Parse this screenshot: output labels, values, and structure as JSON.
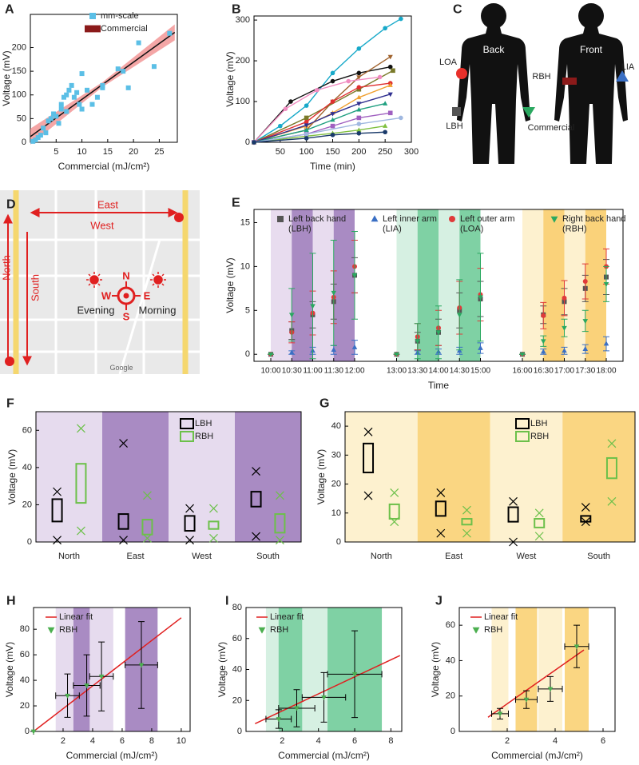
{
  "chart_data": [
    {
      "panel": "A",
      "type": "scatter",
      "xlabel": "Commercial  (mJ/cm²)",
      "ylabel": "Voltage (mV)",
      "xlim": [
        0,
        28.5
      ],
      "xticks": [
        5,
        10,
        15,
        20,
        25
      ],
      "ylim": [
        0,
        270
      ],
      "yticks": [
        0,
        50,
        100,
        150,
        200
      ],
      "series": [
        {
          "name": "mm-scale",
          "color": "#5bbfe6",
          "marker": "square",
          "x": [
            0.5,
            1,
            1.5,
            2,
            2.5,
            3,
            3.5,
            4,
            4.5,
            5,
            5.5,
            6,
            6,
            6.5,
            7,
            7,
            7.5,
            8,
            8.5,
            9,
            9.5,
            10,
            10,
            11,
            12,
            13,
            14,
            14,
            17,
            18,
            19,
            21,
            24,
            27
          ],
          "values": [
            2,
            5,
            10,
            15,
            30,
            20,
            45,
            50,
            60,
            55,
            40,
            70,
            80,
            95,
            65,
            100,
            110,
            120,
            95,
            105,
            80,
            70,
            145,
            110,
            80,
            95,
            120,
            115,
            155,
            150,
            115,
            210,
            160,
            230
          ]
        },
        {
          "name": "Commercial",
          "color": "#8b1a1a",
          "marker": "bar",
          "x": [],
          "values": []
        }
      ],
      "fit": {
        "color": "#111111",
        "band_color": "#f08080",
        "x": [
          0,
          28
        ],
        "y": [
          12,
          232
        ]
      }
    },
    {
      "panel": "B",
      "type": "line",
      "xlabel": "Time (min)",
      "ylabel": "Voltage  (mV)",
      "xlim": [
        0,
        300
      ],
      "xticks": [
        50,
        100,
        150,
        200,
        250,
        300
      ],
      "ylim": [
        0,
        310
      ],
      "yticks": [
        0,
        100,
        200,
        300
      ],
      "series": [
        {
          "color": "#17a9c9",
          "marker": "circle",
          "x": [
            0,
            50,
            100,
            150,
            200,
            250,
            280
          ],
          "values": [
            0,
            40,
            90,
            170,
            230,
            280,
            303
          ]
        },
        {
          "color": "#111111",
          "marker": "circle",
          "x": [
            0,
            70,
            150,
            200,
            260
          ],
          "values": [
            0,
            100,
            150,
            170,
            185
          ]
        },
        {
          "color": "#a0622d",
          "marker": "triangle-down",
          "x": [
            0,
            100,
            150,
            200,
            260
          ],
          "values": [
            0,
            30,
            100,
            160,
            210
          ]
        },
        {
          "color": "#7a7a2a",
          "marker": "square",
          "x": [
            0,
            100,
            200,
            265
          ],
          "values": [
            0,
            60,
            130,
            176
          ]
        },
        {
          "color": "#f08bc0",
          "marker": "circle",
          "x": [
            0,
            60,
            120,
            180,
            240
          ],
          "values": [
            0,
            82,
            128,
            150,
            160
          ]
        },
        {
          "color": "#e03030",
          "marker": "circle",
          "x": [
            0,
            100,
            150,
            200,
            260
          ],
          "values": [
            0,
            50,
            100,
            135,
            145
          ]
        },
        {
          "color": "#f0a030",
          "marker": "triangle",
          "x": [
            0,
            100,
            150,
            200,
            260
          ],
          "values": [
            0,
            40,
            72,
            110,
            140
          ]
        },
        {
          "color": "#303090",
          "marker": "triangle-down",
          "x": [
            0,
            100,
            150,
            200,
            260
          ],
          "values": [
            0,
            42,
            70,
            95,
            118
          ]
        },
        {
          "color": "#20a080",
          "marker": "triangle",
          "x": [
            0,
            100,
            150,
            200,
            250
          ],
          "values": [
            0,
            30,
            55,
            80,
            95
          ]
        },
        {
          "color": "#a060c0",
          "marker": "square",
          "x": [
            0,
            100,
            150,
            200,
            260
          ],
          "values": [
            0,
            20,
            40,
            60,
            72
          ]
        },
        {
          "color": "#80c040",
          "marker": "triangle",
          "x": [
            0,
            100,
            150,
            200,
            250
          ],
          "values": [
            0,
            15,
            22,
            30,
            40
          ]
        },
        {
          "color": "#a0b8e0",
          "marker": "circle",
          "x": [
            0,
            100,
            200,
            280
          ],
          "values": [
            0,
            20,
            45,
            60
          ]
        },
        {
          "color": "#1a3a6a",
          "marker": "circle",
          "x": [
            0,
            100,
            150,
            200,
            250
          ],
          "values": [
            0,
            10,
            18,
            22,
            25
          ]
        }
      ]
    },
    {
      "panel": "E",
      "type": "scatter",
      "xlabel": "Time",
      "ylabel": "Voltage (mV)",
      "xlim": [
        9.6,
        18.4
      ],
      "xticks": [
        {
          "value": 10,
          "label": "10:00"
        },
        {
          "value": 10.5,
          "label": "10:30"
        },
        {
          "value": 11,
          "label": "11:00"
        },
        {
          "value": 11.5,
          "label": "11:30"
        },
        {
          "value": 12,
          "label": "12:00"
        },
        {
          "value": 13,
          "label": "13:00"
        },
        {
          "value": 13.5,
          "label": "13:30"
        },
        {
          "value": 14,
          "label": "14:00"
        },
        {
          "value": 14.5,
          "label": "14:30"
        },
        {
          "value": 15,
          "label": "15:00"
        },
        {
          "value": 16,
          "label": "16:00"
        },
        {
          "value": 16.5,
          "label": "16:30"
        },
        {
          "value": 17,
          "label": "17:00"
        },
        {
          "value": 17.5,
          "label": "17:30"
        },
        {
          "value": 18,
          "label": "18:00"
        }
      ],
      "ylim": [
        -0.8,
        16.5
      ],
      "yticks": [
        0,
        5,
        10,
        15
      ],
      "bands": "ticks",
      "band_colors": [
        "#e8dcef",
        "#a98bc3",
        "#e8dcef",
        "#a98bc3",
        "#d6f0e2",
        "#7fd1a4",
        "#d6f0e2",
        "#7fd1a4",
        "#fdf1cf",
        "#fad27a",
        "#fdf1cf",
        "#fad27a"
      ],
      "x": [
        10,
        10.5,
        11,
        11.5,
        12,
        13,
        13.5,
        14,
        14.5,
        15,
        16,
        16.5,
        17,
        17.5,
        18
      ],
      "series": [
        {
          "name": "Left back hand\n(LBH)",
          "color": "#555555",
          "marker": "square",
          "values": [
            0,
            2.7,
            4.5,
            6,
            9,
            0,
            1.5,
            2.5,
            5,
            6.3,
            0,
            4.5,
            6,
            7.5,
            8.8
          ],
          "yerr": [
            0,
            1,
            1.5,
            2,
            2,
            0,
            1,
            1.5,
            2,
            2,
            0,
            1,
            1.5,
            1.5,
            2
          ]
        },
        {
          "name": "Left inner arm\n(LIA)",
          "color": "#3a6fc4",
          "marker": "triangle",
          "values": [
            0,
            0.2,
            0.4,
            0.5,
            0.8,
            0,
            0.2,
            0.3,
            0.4,
            0.7,
            0,
            0.3,
            0.4,
            0.6,
            1.2
          ],
          "yerr": [
            0,
            0.2,
            0.4,
            0.5,
            0.8,
            0,
            0.2,
            0.3,
            0.4,
            0.6,
            0,
            0.3,
            0.4,
            0.5,
            0.8
          ]
        },
        {
          "name": "Left outer arm\n(LOA)",
          "color": "#e03a3a",
          "marker": "circle",
          "values": [
            0,
            2.5,
            4.7,
            6.5,
            10,
            0,
            2,
            3,
            5.3,
            6.8,
            0,
            4.4,
            6.4,
            8.3,
            10
          ],
          "yerr": [
            0,
            1.2,
            2.5,
            3,
            3,
            0,
            1.5,
            2,
            3,
            3,
            0,
            1.5,
            2,
            2,
            2
          ]
        },
        {
          "name": "Right back hand\n(RBH)",
          "color": "#2aa860",
          "marker": "triangle-down",
          "values": [
            0,
            4.5,
            5.5,
            7,
            9,
            0,
            1.5,
            2.5,
            4.5,
            6.5,
            0,
            1.5,
            3,
            3.8,
            8
          ],
          "yerr": [
            0,
            3,
            6,
            6,
            5,
            0,
            2,
            3,
            4,
            5,
            0,
            0.6,
            1,
            1.2,
            2
          ]
        }
      ]
    },
    {
      "panel": "F",
      "type": "box",
      "ylabel": "Voltage (mV)",
      "categories": [
        "North",
        "East",
        "West",
        "South"
      ],
      "ylim": [
        0,
        70
      ],
      "yticks": [
        0,
        20,
        40,
        60
      ],
      "band_colors": [
        "#e6dbee",
        "#a98bc3",
        "#e6dbee",
        "#a98bc3"
      ],
      "series": [
        {
          "name": "LBH",
          "color": "#000000",
          "min": [
            1,
            1,
            1,
            3
          ],
          "q1": [
            11,
            7,
            6,
            19
          ],
          "q3": [
            23,
            15,
            14,
            27
          ],
          "max": [
            27,
            53,
            18,
            38
          ]
        },
        {
          "name": "RBH",
          "color": "#6cc04a",
          "min": [
            6,
            2,
            2,
            1
          ],
          "q1": [
            21,
            4,
            7,
            5
          ],
          "q3": [
            42,
            12,
            11,
            15
          ],
          "max": [
            61,
            25,
            18,
            25
          ]
        }
      ]
    },
    {
      "panel": "G",
      "type": "box",
      "ylabel": "Voltage (mV)",
      "categories": [
        "North",
        "East",
        "West",
        "South"
      ],
      "ylim": [
        0,
        45
      ],
      "yticks": [
        0,
        10,
        20,
        30,
        40
      ],
      "band_colors": [
        "#fdf1cf",
        "#fad682",
        "#fdf1cf",
        "#fad682"
      ],
      "series": [
        {
          "name": "LBH",
          "color": "#000000",
          "min": [
            16,
            3,
            0,
            7
          ],
          "q1": [
            24,
            9,
            7,
            7
          ],
          "q3": [
            34,
            14,
            12,
            9
          ],
          "max": [
            38,
            17,
            14,
            12
          ]
        },
        {
          "name": "RBH",
          "color": "#6cc04a",
          "min": [
            7,
            3,
            2,
            14
          ],
          "q1": [
            8,
            6,
            5,
            22
          ],
          "q3": [
            13,
            8,
            8,
            29
          ],
          "max": [
            17,
            11,
            10,
            34
          ]
        }
      ]
    },
    {
      "panel": "H",
      "type": "scatter",
      "xlabel": "Commercial (mJ/cm²)",
      "ylabel": "Voltage (mV)",
      "xlim": [
        0,
        10.6
      ],
      "xticks": [
        2,
        4,
        6,
        8,
        10
      ],
      "ylim": [
        0,
        97
      ],
      "yticks": [
        0,
        20,
        40,
        60,
        80
      ],
      "bands": "points",
      "band_colors": [
        "#e6dbee",
        "#a98bc3"
      ],
      "error_color": "#000000",
      "series": [
        {
          "name": "RBH",
          "color": "#4caf50",
          "marker": "triangle-down",
          "x": [
            0,
            2.3,
            3.6,
            4.6,
            7.3
          ],
          "values": [
            0,
            28,
            36,
            43,
            52
          ],
          "xerr": [
            0,
            0.8,
            0.9,
            0.8,
            1.1
          ],
          "yerr": [
            0,
            17,
            24,
            27,
            34
          ]
        }
      ],
      "fit": {
        "name": "Linear fit",
        "color": "#e02020",
        "x": [
          0,
          10
        ],
        "y": [
          0,
          89
        ]
      }
    },
    {
      "panel": "I",
      "type": "scatter",
      "xlabel": "Commercial (mJ/cm²)",
      "ylabel": "Voltage (mV)",
      "xlim": [
        0,
        8.6
      ],
      "xticks": [
        2,
        4,
        6,
        8
      ],
      "ylim": [
        0,
        80
      ],
      "yticks": [
        0,
        20,
        40,
        60,
        80
      ],
      "bands": "points",
      "band_colors": [
        "#d6f0e2",
        "#7fd1a4"
      ],
      "error_color": "#000000",
      "series": [
        {
          "name": "RBH",
          "color": "#4caf50",
          "marker": "triangle-down",
          "x": [
            1.8,
            2.8,
            4.3,
            6
          ],
          "values": [
            8,
            15,
            22,
            37
          ],
          "xerr": [
            0.7,
            1,
            1.2,
            1.5
          ],
          "yerr": [
            6,
            12,
            16,
            28
          ]
        }
      ],
      "fit": {
        "name": "Linear fit",
        "color": "#e02020",
        "x": [
          0.5,
          8.5
        ],
        "y": [
          5,
          49
        ]
      }
    },
    {
      "panel": "J",
      "type": "scatter",
      "xlabel": "Commercial (mJ/cm²)",
      "ylabel": "Voltage (mV)",
      "xlim": [
        0,
        6.5
      ],
      "xticks": [
        2,
        4,
        6
      ],
      "ylim": [
        0,
        70
      ],
      "yticks": [
        0,
        20,
        40,
        60
      ],
      "bands": "points",
      "band_colors": [
        "#fdf1cf",
        "#fad682"
      ],
      "error_color": "#000000",
      "series": [
        {
          "name": "RBH",
          "color": "#4caf50",
          "marker": "triangle-down",
          "x": [
            1.7,
            2.8,
            3.8,
            4.9
          ],
          "values": [
            10,
            18,
            24,
            48
          ],
          "xerr": [
            0.35,
            0.45,
            0.5,
            0.5
          ],
          "yerr": [
            3,
            5,
            7,
            12
          ]
        }
      ],
      "fit": {
        "name": "Linear fit",
        "color": "#e02020",
        "x": [
          1.2,
          5.2
        ],
        "y": [
          8,
          46
        ]
      }
    }
  ],
  "body_diagram": {
    "panel": "C",
    "back": "Back",
    "front": "Front",
    "loa": "LOA",
    "rbh": "RBH",
    "lbh": "LBH",
    "commercial": "Commercial",
    "lia": "LIA"
  },
  "map": {
    "panel": "D",
    "east": "East",
    "west": "West",
    "north": "North",
    "south": "South",
    "n": "N",
    "w": "W",
    "e": "E",
    "s": "S",
    "evening": "Evening",
    "morning": "Morning",
    "logo": "Google"
  }
}
